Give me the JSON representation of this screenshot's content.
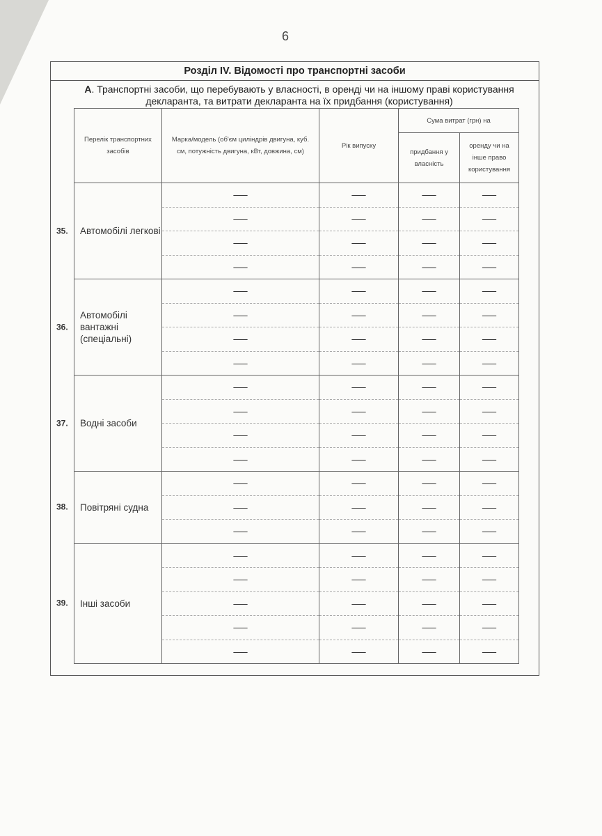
{
  "page_number": "6",
  "section_title": "Розділ IV. Відомості про транспортні засоби",
  "subsection": {
    "letter": "А",
    "text": ". Транспортні засоби, що перебувають у власності, в оренді чи на іншому праві користування декларанта, та витрати декларанта на їх придбання (користування)"
  },
  "table": {
    "headers": {
      "list": "Перелік транспортних засобів",
      "model": "Марка/модель (об'єм циліндрів двигуна, куб. см, потужність двигуна, кВт, довжина, см)",
      "year": "Рік випуску",
      "sum": "Сума витрат (грн) на",
      "purchase": "придбання у власність",
      "lease": "оренду чи на інше право користування"
    },
    "empty_mark": "—",
    "sections": [
      {
        "number": "35.",
        "label": "Автомобілі легкові",
        "rows": 4
      },
      {
        "number": "36.",
        "label": "Автомобілі вантажні (спеціальні)",
        "rows": 4
      },
      {
        "number": "37.",
        "label": "Водні засоби",
        "rows": 4
      },
      {
        "number": "38.",
        "label": "Повітряні судна",
        "rows": 3
      },
      {
        "number": "39.",
        "label": "Інші засоби",
        "rows": 5
      }
    ]
  }
}
